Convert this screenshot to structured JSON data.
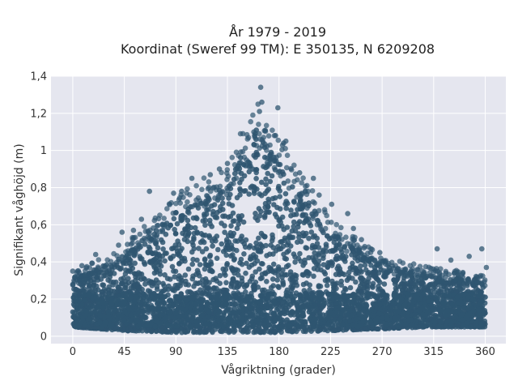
{
  "chart_data": {
    "type": "scatter",
    "title_line1": "År 1979 - 2019",
    "title_line2": "Koordinat (Sweref 99 TM): E 350135, N 6209208",
    "xlabel": "Vågriktning (grader)",
    "ylabel": "Signifikant våghöjd (m)",
    "xlim": [
      -19,
      378
    ],
    "ylim": [
      -0.04,
      1.4
    ],
    "x_ticks": [
      0,
      45,
      90,
      135,
      180,
      225,
      270,
      315,
      360
    ],
    "x_tick_labels": [
      "0",
      "45",
      "90",
      "135",
      "180",
      "225",
      "270",
      "315",
      "360"
    ],
    "y_ticks": [
      0,
      0.2,
      0.4,
      0.6,
      0.8,
      1,
      1.2,
      1.4
    ],
    "y_tick_labels": [
      "0",
      "0,2",
      "0,4",
      "0,6",
      "0,8",
      "1",
      "1,2",
      "1,4"
    ],
    "grid": true,
    "background_color": "#e5e6ef",
    "marker_color": "#2f5570",
    "envelope": {
      "x": [
        0,
        45,
        90,
        135,
        160,
        170,
        180,
        225,
        270,
        315,
        360
      ],
      "y_max": [
        0.33,
        0.48,
        0.74,
        0.92,
        1.25,
        1.12,
        1.05,
        0.62,
        0.42,
        0.36,
        0.33
      ],
      "y_min": [
        0.05,
        0.03,
        0.02,
        0.02,
        0.02,
        0.02,
        0.02,
        0.03,
        0.04,
        0.05,
        0.05
      ]
    },
    "series": [
      {
        "values": [
          {
            "x": 164,
            "y": 1.34
          },
          {
            "x": 179,
            "y": 1.23
          },
          {
            "x": 163,
            "y": 1.21
          },
          {
            "x": 165,
            "y": 1.26
          },
          {
            "x": 158,
            "y": 1.1
          },
          {
            "x": 186,
            "y": 1.05
          },
          {
            "x": 184,
            "y": 1.04
          },
          {
            "x": 177,
            "y": 1.08
          },
          {
            "x": 210,
            "y": 0.85
          },
          {
            "x": 198,
            "y": 0.88
          },
          {
            "x": 215,
            "y": 0.76
          },
          {
            "x": 226,
            "y": 0.71
          },
          {
            "x": 240,
            "y": 0.66
          },
          {
            "x": 245,
            "y": 0.58
          },
          {
            "x": 252,
            "y": 0.52
          },
          {
            "x": 268,
            "y": 0.45
          },
          {
            "x": 273,
            "y": 0.4
          },
          {
            "x": 318,
            "y": 0.47
          },
          {
            "x": 346,
            "y": 0.43
          },
          {
            "x": 357,
            "y": 0.47
          },
          {
            "x": 361,
            "y": 0.37
          },
          {
            "x": 330,
            "y": 0.41
          },
          {
            "x": 135,
            "y": 0.93
          },
          {
            "x": 128,
            "y": 0.9
          },
          {
            "x": 120,
            "y": 0.87
          },
          {
            "x": 104,
            "y": 0.85
          },
          {
            "x": 95,
            "y": 0.78
          },
          {
            "x": 88,
            "y": 0.77
          },
          {
            "x": 67,
            "y": 0.78
          },
          {
            "x": 60,
            "y": 0.63
          },
          {
            "x": 53,
            "y": 0.57
          },
          {
            "x": 43,
            "y": 0.56
          },
          {
            "x": 40,
            "y": 0.49
          },
          {
            "x": 20,
            "y": 0.44
          },
          {
            "x": 8,
            "y": 0.38
          },
          {
            "x": 0,
            "y": 0.35
          },
          {
            "x": 2,
            "y": 0.32
          }
        ]
      }
    ]
  }
}
